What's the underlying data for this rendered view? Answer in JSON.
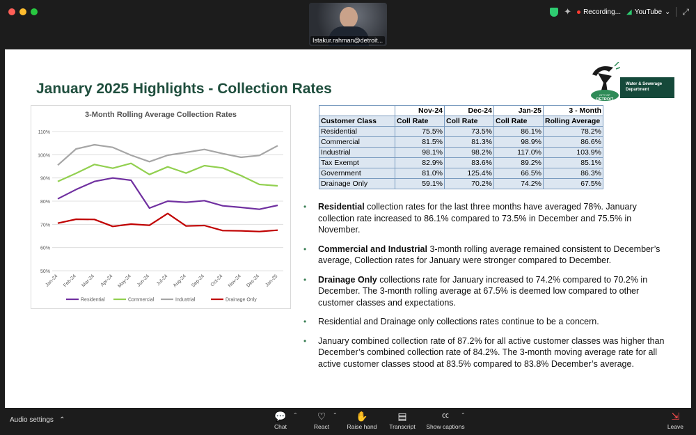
{
  "camera": {
    "participant_name": "Istakur.rahman@detroit..."
  },
  "status": {
    "recording_label": "Recording...",
    "stream_label": "YouTube"
  },
  "slide": {
    "title": "January 2025 Highlights - Collection Rates",
    "logo": {
      "line1": "Water & Sewerage",
      "line2": "Department",
      "city": "CITY OF",
      "city_name": "DETROIT"
    },
    "table": {
      "header_periods": [
        "",
        "Nov-24",
        "Dec-24",
        "Jan-25",
        "3 - Month"
      ],
      "header_labels": [
        "Customer Class",
        "Coll Rate",
        "Coll Rate",
        "Coll Rate",
        "Rolling Average"
      ],
      "rows": [
        [
          "Residential",
          "75.5%",
          "73.5%",
          "86.1%",
          "78.2%"
        ],
        [
          "Commercial",
          "81.5%",
          "81.3%",
          "98.9%",
          "86.6%"
        ],
        [
          "Industrial",
          "98.1%",
          "98.2%",
          "117.0%",
          "103.9%"
        ],
        [
          "Tax Exempt",
          "82.9%",
          "83.6%",
          "89.2%",
          "85.1%"
        ],
        [
          "Government",
          "81.0%",
          "125.4%",
          "66.5%",
          "86.3%"
        ],
        [
          "Drainage Only",
          "59.1%",
          "70.2%",
          "74.2%",
          "67.5%"
        ]
      ]
    },
    "bullets": [
      {
        "bold": "Residential",
        "text": " collection rates for the last three months have averaged 78%.  January collection rate increased to 86.1% compared to 73.5% in December and 75.5% in November."
      },
      {
        "bold": "Commercial and Industrial",
        "text": " 3-month rolling average remained consistent to December’s average, Collection rates for January were stronger compared to December."
      },
      {
        "bold": "Drainage Only",
        "text": " collections rate for January increased to 74.2% compared to 70.2% in December.  The 3-month rolling average at 67.5% is deemed low compared to other customer classes and expectations."
      },
      {
        "bold": "",
        "text": "Residential and Drainage only collections rates continue to be a concern."
      },
      {
        "bold": "",
        "text": "January combined collection rate of 87.2% for all active customer classes was higher than December’s combined collection rate of 84.2%. The 3-month moving average rate for all active customer classes stood at 83.5% compared to 83.8% December’s average."
      }
    ]
  },
  "chart_data": {
    "type": "line",
    "title": "3-Month Rolling Average Collection Rates",
    "xlabel": "",
    "ylabel": "",
    "categories": [
      "Jan-24",
      "Feb-24",
      "Mar-24",
      "Apr-24",
      "May-24",
      "Jun-24",
      "Jul-24",
      "Aug-24",
      "Sep-24",
      "Oct-24",
      "Nov-24",
      "Dec-24",
      "Jan-25"
    ],
    "ylim": [
      50,
      110
    ],
    "yticks": [
      "50%",
      "60%",
      "70%",
      "80%",
      "90%",
      "100%",
      "110%"
    ],
    "grid": true,
    "legend_position": "bottom",
    "series": [
      {
        "name": "Residential",
        "color": "#7030a0",
        "values": [
          81,
          85,
          88.5,
          90,
          89,
          77,
          80,
          79.5,
          80.2,
          78,
          77.3,
          76.5,
          78.2
        ]
      },
      {
        "name": "Commercial",
        "color": "#92d050",
        "values": [
          88.5,
          92,
          95.8,
          94.2,
          96.3,
          91.5,
          94.8,
          92.1,
          95.3,
          94.3,
          91,
          87.2,
          86.6
        ]
      },
      {
        "name": "Industrial",
        "color": "#a6a6a6",
        "values": [
          95.5,
          102.5,
          104.3,
          103.2,
          99.8,
          97,
          99.8,
          101,
          102.3,
          100.5,
          98.9,
          99.7,
          103.9
        ]
      },
      {
        "name": "Drainage Only",
        "color": "#c00000",
        "values": [
          70.5,
          72.2,
          72.1,
          69.1,
          70.1,
          69.6,
          74.7,
          69.3,
          69.5,
          67.3,
          67.2,
          66.9,
          67.5
        ]
      }
    ]
  },
  "toolbar": {
    "audio_label": "Audio settings",
    "buttons": [
      {
        "label": "Chat",
        "icon": "chat-icon"
      },
      {
        "label": "React",
        "icon": "heart-icon"
      },
      {
        "label": "Raise hand",
        "icon": "hand-icon"
      },
      {
        "label": "Transcript",
        "icon": "transcript-icon"
      },
      {
        "label": "Show captions",
        "icon": "cc-icon"
      }
    ],
    "leave_label": "Leave"
  }
}
